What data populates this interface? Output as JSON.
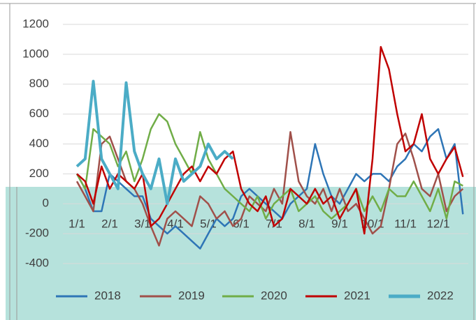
{
  "chart_data": {
    "type": "line",
    "categories": [
      "1/1",
      null,
      null,
      null,
      "2/1",
      null,
      null,
      null,
      "3/1",
      null,
      null,
      null,
      "4/1",
      null,
      null,
      null,
      "5/1",
      null,
      null,
      null,
      "6/1",
      null,
      null,
      null,
      "7/1",
      null,
      null,
      null,
      "8/1",
      null,
      null,
      null,
      "9/1",
      null,
      null,
      null,
      "10/1",
      null,
      null,
      null,
      "11/1",
      null,
      null,
      null,
      "12/1",
      null,
      null,
      null
    ],
    "series": [
      {
        "name": "2018",
        "color": "#2e75b6",
        "values": [
          200,
          100,
          -50,
          -50,
          200,
          150,
          100,
          50,
          50,
          -100,
          -150,
          -200,
          -150,
          -200,
          -250,
          -300,
          -200,
          -100,
          -150,
          -100,
          50,
          100,
          50,
          0,
          -50,
          -100,
          0,
          50,
          100,
          400,
          200,
          50,
          0,
          100,
          200,
          150,
          200,
          200,
          150,
          250,
          300,
          400,
          350,
          450,
          500,
          300,
          400,
          -70
        ]
      },
      {
        "name": "2019",
        "color": "#a0504a",
        "values": [
          150,
          50,
          -50,
          400,
          450,
          300,
          150,
          100,
          0,
          -150,
          -280,
          -100,
          -50,
          -100,
          -150,
          50,
          0,
          -100,
          -50,
          -150,
          -100,
          50,
          0,
          -50,
          100,
          0,
          480,
          150,
          50,
          0,
          100,
          -50,
          100,
          -50,
          0,
          -100,
          -200,
          -150,
          100,
          400,
          470,
          300,
          100,
          50,
          200,
          -50,
          50,
          100
        ]
      },
      {
        "name": "2020",
        "color": "#70ad47",
        "values": [
          200,
          100,
          500,
          450,
          400,
          250,
          350,
          150,
          300,
          500,
          600,
          550,
          400,
          300,
          200,
          480,
          300,
          200,
          100,
          50,
          0,
          -50,
          50,
          -100,
          0,
          50,
          100,
          -50,
          0,
          50,
          -50,
          -100,
          -50,
          0,
          100,
          -50,
          50,
          -50,
          100,
          50,
          50,
          150,
          50,
          -50,
          100,
          -100,
          150,
          120
        ]
      },
      {
        "name": "2021",
        "color": "#c00000",
        "values": [
          200,
          150,
          0,
          250,
          100,
          200,
          150,
          100,
          200,
          -150,
          -100,
          0,
          100,
          200,
          250,
          150,
          250,
          200,
          300,
          350,
          100,
          0,
          -50,
          50,
          -150,
          -100,
          100,
          50,
          0,
          100,
          0,
          50,
          -100,
          0,
          100,
          -200,
          300,
          1050,
          900,
          600,
          350,
          400,
          600,
          300,
          200,
          300,
          380,
          180
        ]
      },
      {
        "name": "2022",
        "color": "#4bacc6",
        "values": [
          250,
          300,
          820,
          300,
          200,
          100,
          810,
          350,
          200,
          100,
          300,
          0,
          300,
          150,
          200,
          250,
          400,
          300,
          350,
          300,
          null,
          null,
          null,
          null,
          null,
          null,
          null,
          null,
          null,
          null,
          null,
          null,
          null,
          null,
          null,
          null,
          null,
          null,
          null,
          null,
          null,
          null,
          null,
          null,
          null,
          null,
          null,
          null
        ]
      }
    ],
    "ylim": [
      -400,
      1200
    ],
    "yticks": [
      -400,
      -200,
      0,
      200,
      400,
      600,
      800,
      1000,
      1200
    ],
    "grid": true,
    "legend": "bottom"
  }
}
